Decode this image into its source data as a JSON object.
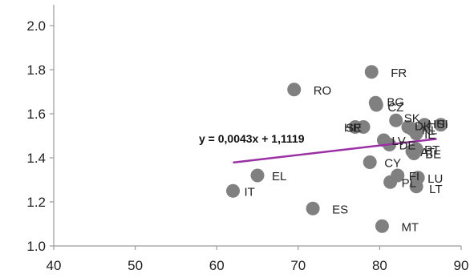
{
  "chart_data": {
    "type": "scatter",
    "title": "",
    "xlabel": "",
    "ylabel": "",
    "xlim": [
      40,
      90
    ],
    "ylim": [
      1.0,
      2.0
    ],
    "x_ticks": [
      40,
      50,
      60,
      70,
      80,
      90
    ],
    "y_ticks": [
      "1.0",
      "1.2",
      "1.4",
      "1.6",
      "1.8",
      "2.0"
    ],
    "grid": false,
    "point_color": "#808080",
    "trend_color": "#9b2fa6",
    "trendline": {
      "slope": 0.0043,
      "intercept": 1.1119,
      "x_range": [
        62,
        87
      ],
      "equation": "y = 0,0043x + 1,1119"
    },
    "points": [
      {
        "label": "FR",
        "x": 79.0,
        "y": 1.79
      },
      {
        "label": "RO",
        "x": 69.5,
        "y": 1.71
      },
      {
        "label": "BG",
        "x": 79.5,
        "y": 1.65
      },
      {
        "label": "CZ",
        "x": 79.6,
        "y": 1.64
      },
      {
        "label": "SK",
        "x": 82.0,
        "y": 1.57
      },
      {
        "label": "HU",
        "x": 85.5,
        "y": 1.55
      },
      {
        "label": "SI",
        "x": 87.5,
        "y": 1.55
      },
      {
        "label": "DK",
        "x": 83.5,
        "y": 1.54
      },
      {
        "label": "NL",
        "x": 84.0,
        "y": 1.53
      },
      {
        "label": "HR",
        "x": 77.0,
        "y": 1.54
      },
      {
        "label": "SE",
        "x": 78.0,
        "y": 1.54
      },
      {
        "label": "IE",
        "x": 84.5,
        "y": 1.51
      },
      {
        "label": "LV",
        "x": 80.5,
        "y": 1.48
      },
      {
        "label": "DE",
        "x": 81.2,
        "y": 1.46
      },
      {
        "label": "PT",
        "x": 84.5,
        "y": 1.44
      },
      {
        "label": "AT",
        "x": 84.0,
        "y": 1.43
      },
      {
        "label": "BE",
        "x": 84.2,
        "y": 1.42
      },
      {
        "label": "CY",
        "x": 78.8,
        "y": 1.38
      },
      {
        "label": "EL",
        "x": 65.0,
        "y": 1.32
      },
      {
        "label": "FI",
        "x": 82.2,
        "y": 1.32
      },
      {
        "label": "LU",
        "x": 84.7,
        "y": 1.31
      },
      {
        "label": "PL",
        "x": 81.3,
        "y": 1.29
      },
      {
        "label": "LT",
        "x": 84.5,
        "y": 1.27
      },
      {
        "label": "IT",
        "x": 62.0,
        "y": 1.25
      },
      {
        "label": "ES",
        "x": 71.8,
        "y": 1.17
      },
      {
        "label": "MT",
        "x": 80.3,
        "y": 1.09
      }
    ]
  }
}
